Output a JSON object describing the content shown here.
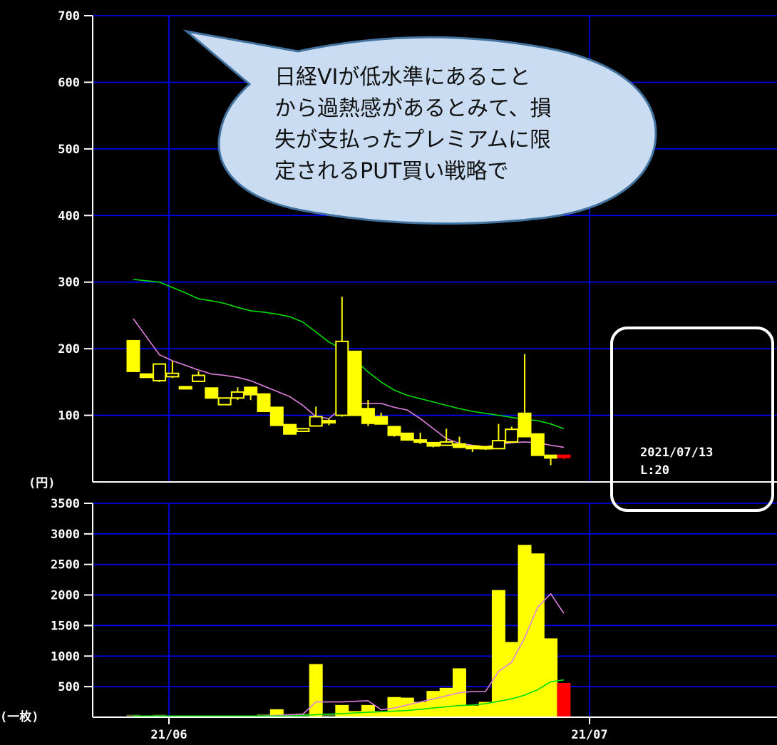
{
  "chart_data": [
    {
      "type": "candlestick",
      "ylabel": "(円)",
      "ylim": [
        0,
        700
      ],
      "yticks": [
        700,
        600,
        500,
        400,
        300,
        200,
        100
      ],
      "colors": {
        "bull_body": "#000000",
        "bear_body": "#ffff00",
        "wick": "#ffff00",
        "grid": "#0000ff",
        "last": "#ff0000"
      },
      "candles": [
        {
          "o": 212,
          "h": 212,
          "l": 166,
          "c": 166
        },
        {
          "o": 162,
          "h": 162,
          "l": 157,
          "c": 157
        },
        {
          "o": 152,
          "h": 177,
          "l": 150,
          "c": 177
        },
        {
          "o": 158,
          "h": 181,
          "l": 156,
          "c": 163
        },
        {
          "o": 143,
          "h": 143,
          "l": 141,
          "c": 142
        },
        {
          "o": 151,
          "h": 166,
          "l": 150,
          "c": 160
        },
        {
          "o": 141,
          "h": 141,
          "l": 126,
          "c": 126
        },
        {
          "o": 116,
          "h": 126,
          "l": 116,
          "c": 126
        },
        {
          "o": 126,
          "h": 142,
          "l": 123,
          "c": 135
        },
        {
          "o": 142,
          "h": 142,
          "l": 123,
          "c": 131
        },
        {
          "o": 132,
          "h": 132,
          "l": 106,
          "c": 106
        },
        {
          "o": 112,
          "h": 112,
          "l": 85,
          "c": 85
        },
        {
          "o": 86,
          "h": 86,
          "l": 72,
          "c": 72
        },
        {
          "o": 76,
          "h": 80,
          "l": 76,
          "c": 80
        },
        {
          "o": 84,
          "h": 113,
          "l": 84,
          "c": 98
        },
        {
          "o": 92,
          "h": 95,
          "l": 85,
          "c": 90
        },
        {
          "o": 100,
          "h": 278,
          "l": 98,
          "c": 211
        },
        {
          "o": 196,
          "h": 196,
          "l": 100,
          "c": 100
        },
        {
          "o": 110,
          "h": 123,
          "l": 84,
          "c": 88
        },
        {
          "o": 98,
          "h": 104,
          "l": 87,
          "c": 87
        },
        {
          "o": 83,
          "h": 83,
          "l": 68,
          "c": 70
        },
        {
          "o": 73,
          "h": 73,
          "l": 62,
          "c": 63
        },
        {
          "o": 63,
          "h": 74,
          "l": 57,
          "c": 60
        },
        {
          "o": 59,
          "h": 59,
          "l": 52,
          "c": 54
        },
        {
          "o": 55,
          "h": 80,
          "l": 55,
          "c": 60
        },
        {
          "o": 57,
          "h": 68,
          "l": 52,
          "c": 52
        },
        {
          "o": 54,
          "h": 54,
          "l": 45,
          "c": 50
        },
        {
          "o": 53,
          "h": 53,
          "l": 48,
          "c": 50
        },
        {
          "o": 50,
          "h": 87,
          "l": 50,
          "c": 62
        },
        {
          "o": 60,
          "h": 83,
          "l": 60,
          "c": 79
        },
        {
          "o": 103,
          "h": 192,
          "l": 68,
          "c": 68
        },
        {
          "o": 72,
          "h": 72,
          "l": 40,
          "c": 40
        },
        {
          "o": 40,
          "h": 40,
          "l": 25,
          "c": 36
        },
        {
          "o": 40,
          "h": 40,
          "l": 34,
          "c": 38
        }
      ],
      "ma_short": [
        245,
        218,
        191,
        182,
        175,
        168,
        162,
        160,
        157,
        152,
        144,
        136,
        128,
        115,
        98,
        95,
        112,
        118,
        118,
        118,
        112,
        108,
        95,
        80,
        65,
        58,
        55,
        53,
        56,
        59,
        60,
        59,
        55,
        52
      ],
      "ma_long": [
        304,
        302,
        300,
        292,
        284,
        275,
        272,
        268,
        262,
        257,
        255,
        252,
        248,
        240,
        225,
        210,
        200,
        183,
        165,
        150,
        138,
        130,
        125,
        120,
        115,
        110,
        106,
        103,
        100,
        97,
        94,
        92,
        87,
        80
      ],
      "annotation": "日経VIが低水準にあることから過熱感があるとみて、損失が支払ったプレミアムに限定されるPUT買い戦略で",
      "crosshair": {
        "date": "2021/07/13",
        "value": "L:20"
      }
    },
    {
      "type": "bar",
      "ylabel": "(一枚)",
      "ylim": [
        0,
        3500
      ],
      "yticks": [
        3500,
        3000,
        2500,
        2000,
        1500,
        1000,
        500
      ],
      "x_labels": [
        "21/06",
        "21/07"
      ],
      "values": [
        40,
        0,
        40,
        0,
        20,
        20,
        20,
        20,
        20,
        20,
        50,
        130,
        50,
        60,
        870,
        60,
        200,
        100,
        200,
        100,
        330,
        320,
        250,
        430,
        480,
        800,
        190,
        250,
        2080,
        1230,
        2820,
        2680,
        1290,
        560
      ],
      "ma_short": [
        20,
        20,
        20,
        20,
        20,
        20,
        20,
        20,
        20,
        20,
        20,
        30,
        40,
        50,
        250,
        250,
        250,
        260,
        270,
        120,
        150,
        200,
        250,
        300,
        350,
        400,
        420,
        420,
        750,
        900,
        1300,
        1800,
        2020,
        1700
      ],
      "ma_long": [
        20,
        20,
        20,
        20,
        20,
        20,
        20,
        20,
        20,
        20,
        20,
        20,
        20,
        30,
        40,
        50,
        60,
        70,
        80,
        90,
        100,
        110,
        130,
        150,
        170,
        190,
        200,
        220,
        260,
        300,
        360,
        450,
        580,
        610
      ],
      "colors": {
        "bar": "#ffff00",
        "last": "#ff0000",
        "ma_short": "#ff88ff",
        "ma_long": "#00ff00"
      }
    }
  ]
}
